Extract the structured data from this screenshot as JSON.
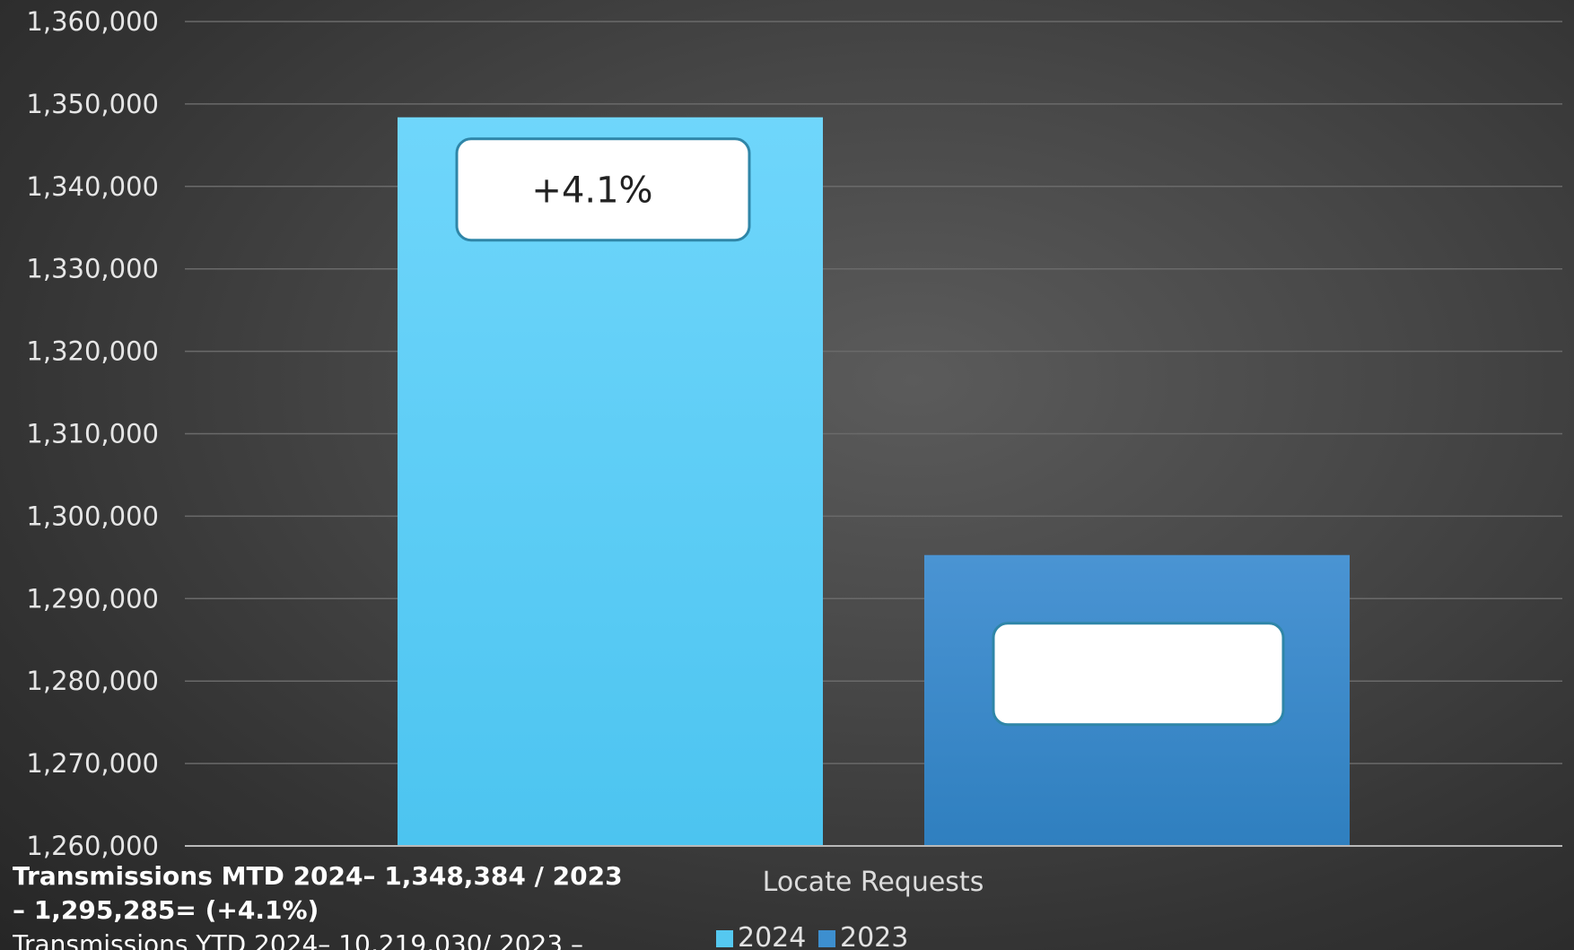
{
  "chart_data": {
    "type": "bar",
    "categories": [
      "Locate Requests"
    ],
    "series": [
      {
        "name": "2024",
        "values": [
          1348384
        ],
        "color": "#55c8f0",
        "callout": "+4.1%"
      },
      {
        "name": "2023",
        "values": [
          1295285
        ],
        "color": "#3d8fcf",
        "callout": ""
      }
    ],
    "title": "",
    "xlabel": "",
    "ylabel": "",
    "ylim": [
      1260000,
      1360000
    ],
    "yticks": [
      "1,260,000",
      "1,270,000",
      "1,280,000",
      "1,290,000",
      "1,300,000",
      "1,310,000",
      "1,320,000",
      "1,330,000",
      "1,340,000",
      "1,350,000",
      "1,360,000"
    ],
    "grid": true,
    "legend_position": "bottom"
  },
  "footnote": {
    "line1": "Transmissions MTD 2024– 1,348,384 / 2023 – 1,295,285=  (+4.1%)",
    "line2": "Transmissions YTD 2024– 10,219,030/ 2023 –"
  }
}
